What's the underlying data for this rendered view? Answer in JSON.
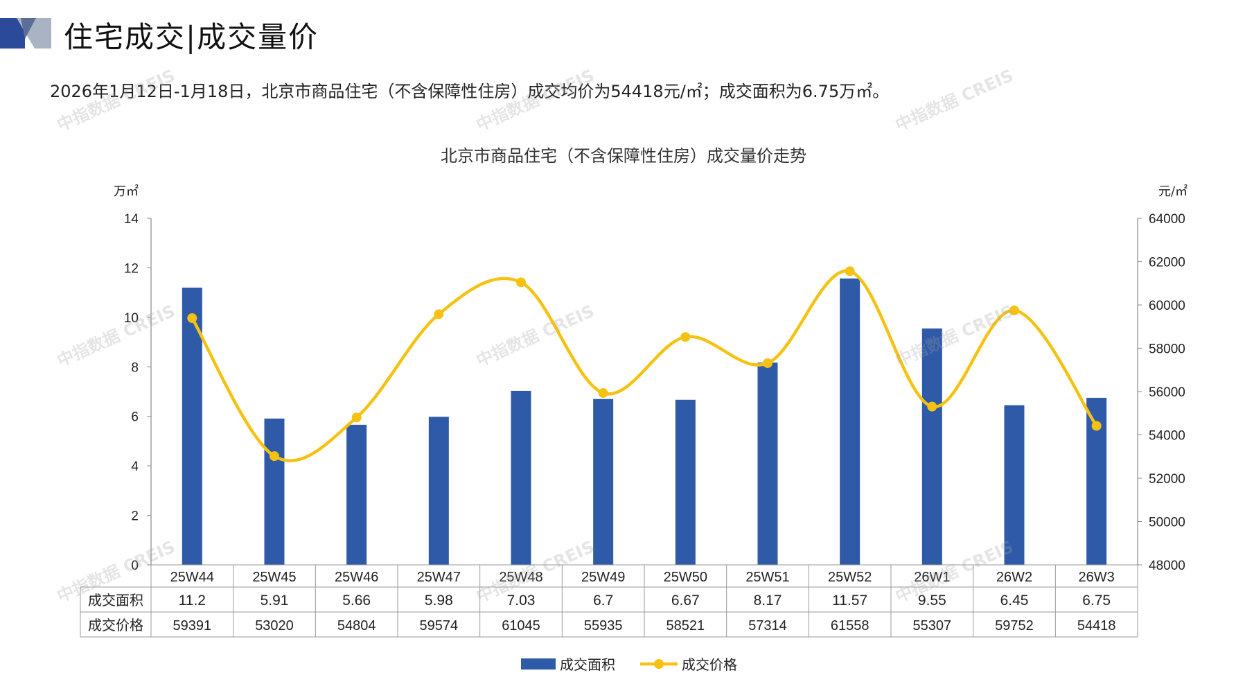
{
  "header": {
    "title": "住宅成交|成交量价",
    "summary": "2026年1月12日-1月18日，北京市商品住宅（不含保障性住房）成交均价为54418元/㎡；成交面积为6.75万㎡。"
  },
  "watermark_text": "中指数据 CREIS",
  "colors": {
    "bar": "#2E5AA8",
    "line": "#F5C211",
    "logo_dark": "#2B4A9A",
    "logo_light": "#A9B3C4"
  },
  "chart_data": {
    "type": "bar+line",
    "title": "北京市商品住宅（不含保障性住房）成交量价走势",
    "left_unit": "万㎡",
    "right_unit": "元/㎡",
    "y_left_range": [
      0,
      14
    ],
    "y_left_ticks": [
      0,
      2,
      4,
      6,
      8,
      10,
      12,
      14
    ],
    "y_right_range": [
      48000,
      64000
    ],
    "y_right_ticks": [
      48000,
      50000,
      52000,
      54000,
      56000,
      58000,
      60000,
      62000,
      64000
    ],
    "categories": [
      "25W44",
      "25W45",
      "25W46",
      "25W47",
      "25W48",
      "25W49",
      "25W50",
      "25W51",
      "25W52",
      "26W1",
      "26W2",
      "26W3"
    ],
    "series": [
      {
        "name": "成交面积",
        "type": "bar",
        "axis": "left",
        "values": [
          11.2,
          5.91,
          5.66,
          5.98,
          7.03,
          6.7,
          6.67,
          8.17,
          11.57,
          9.55,
          6.45,
          6.75
        ],
        "labels": [
          "11.2",
          "5.91",
          "5.66",
          "5.98",
          "7.03",
          "6.7",
          "6.67",
          "8.17",
          "11.57",
          "9.55",
          "6.45",
          "6.75"
        ]
      },
      {
        "name": "成交价格",
        "type": "line",
        "axis": "right",
        "values": [
          59391,
          53020,
          54804,
          59574,
          61045,
          55935,
          58521,
          57314,
          61558,
          55307,
          59752,
          54418
        ]
      }
    ],
    "legend_position": "bottom-center",
    "grid": false,
    "data_table": true
  }
}
